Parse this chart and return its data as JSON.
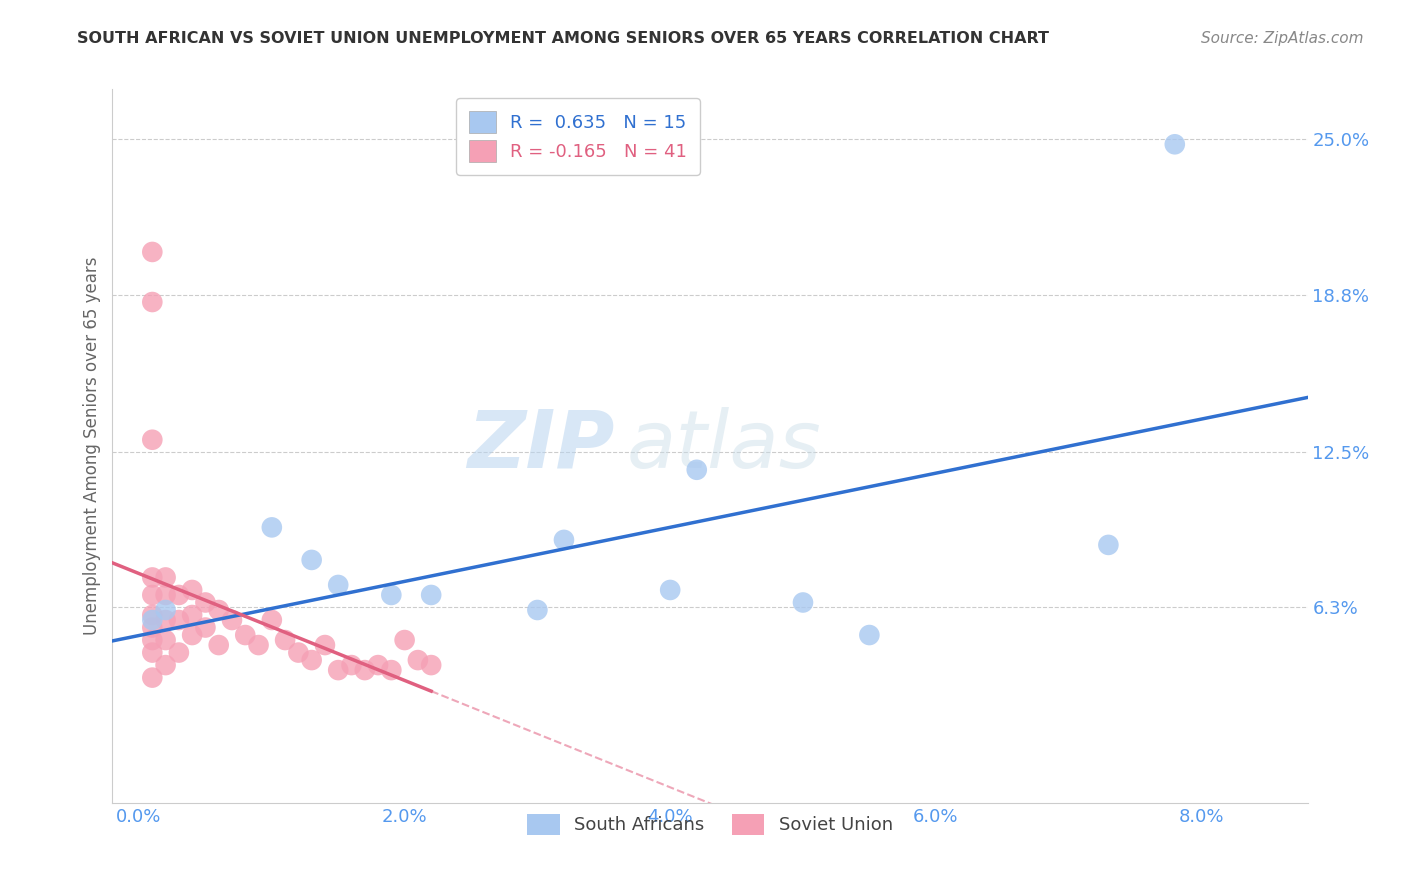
{
  "title": "SOUTH AFRICAN VS SOVIET UNION UNEMPLOYMENT AMONG SENIORS OVER 65 YEARS CORRELATION CHART",
  "source": "Source: ZipAtlas.com",
  "ylabel": "Unemployment Among Seniors over 65 years",
  "xlabel_ticks": [
    "0.0%",
    "2.0%",
    "4.0%",
    "6.0%",
    "8.0%"
  ],
  "xlabel_vals": [
    0.0,
    0.02,
    0.04,
    0.06,
    0.08
  ],
  "ylabel_ticks": [
    "6.3%",
    "12.5%",
    "18.8%",
    "25.0%"
  ],
  "ylabel_vals": [
    0.063,
    0.125,
    0.188,
    0.25
  ],
  "xlim": [
    -0.002,
    0.088
  ],
  "ylim": [
    -0.015,
    0.27
  ],
  "blue_color": "#a8c8f0",
  "pink_color": "#f5a0b5",
  "blue_line_color": "#3070d0",
  "pink_line_color": "#e06080",
  "south_african_x": [
    0.001,
    0.002,
    0.01,
    0.013,
    0.015,
    0.019,
    0.022,
    0.03,
    0.032,
    0.04,
    0.042,
    0.05,
    0.055,
    0.073,
    0.078
  ],
  "south_african_y": [
    0.058,
    0.062,
    0.095,
    0.082,
    0.072,
    0.068,
    0.068,
    0.062,
    0.09,
    0.07,
    0.118,
    0.065,
    0.052,
    0.088,
    0.248
  ],
  "soviet_x": [
    0.001,
    0.001,
    0.001,
    0.001,
    0.001,
    0.001,
    0.001,
    0.001,
    0.001,
    0.001,
    0.002,
    0.002,
    0.002,
    0.002,
    0.002,
    0.003,
    0.003,
    0.003,
    0.004,
    0.004,
    0.004,
    0.005,
    0.005,
    0.006,
    0.006,
    0.007,
    0.008,
    0.009,
    0.01,
    0.011,
    0.012,
    0.013,
    0.014,
    0.015,
    0.016,
    0.017,
    0.018,
    0.019,
    0.02,
    0.021,
    0.022
  ],
  "soviet_y": [
    0.205,
    0.185,
    0.13,
    0.075,
    0.068,
    0.06,
    0.055,
    0.05,
    0.045,
    0.035,
    0.075,
    0.068,
    0.058,
    0.05,
    0.04,
    0.068,
    0.058,
    0.045,
    0.07,
    0.06,
    0.052,
    0.065,
    0.055,
    0.062,
    0.048,
    0.058,
    0.052,
    0.048,
    0.058,
    0.05,
    0.045,
    0.042,
    0.048,
    0.038,
    0.04,
    0.038,
    0.04,
    0.038,
    0.05,
    0.042,
    0.04
  ],
  "legend_blue_label": "R =  0.635   N = 15",
  "legend_pink_label": "R = -0.165   N = 41",
  "legend_south": "South Africans",
  "legend_soviet": "Soviet Union",
  "watermark_zip": "ZIP",
  "watermark_atlas": "atlas",
  "background_color": "#ffffff",
  "grid_color": "#cccccc",
  "title_color": "#333333",
  "source_color": "#888888",
  "axis_label_color": "#666666",
  "tick_color": "#5599ee"
}
